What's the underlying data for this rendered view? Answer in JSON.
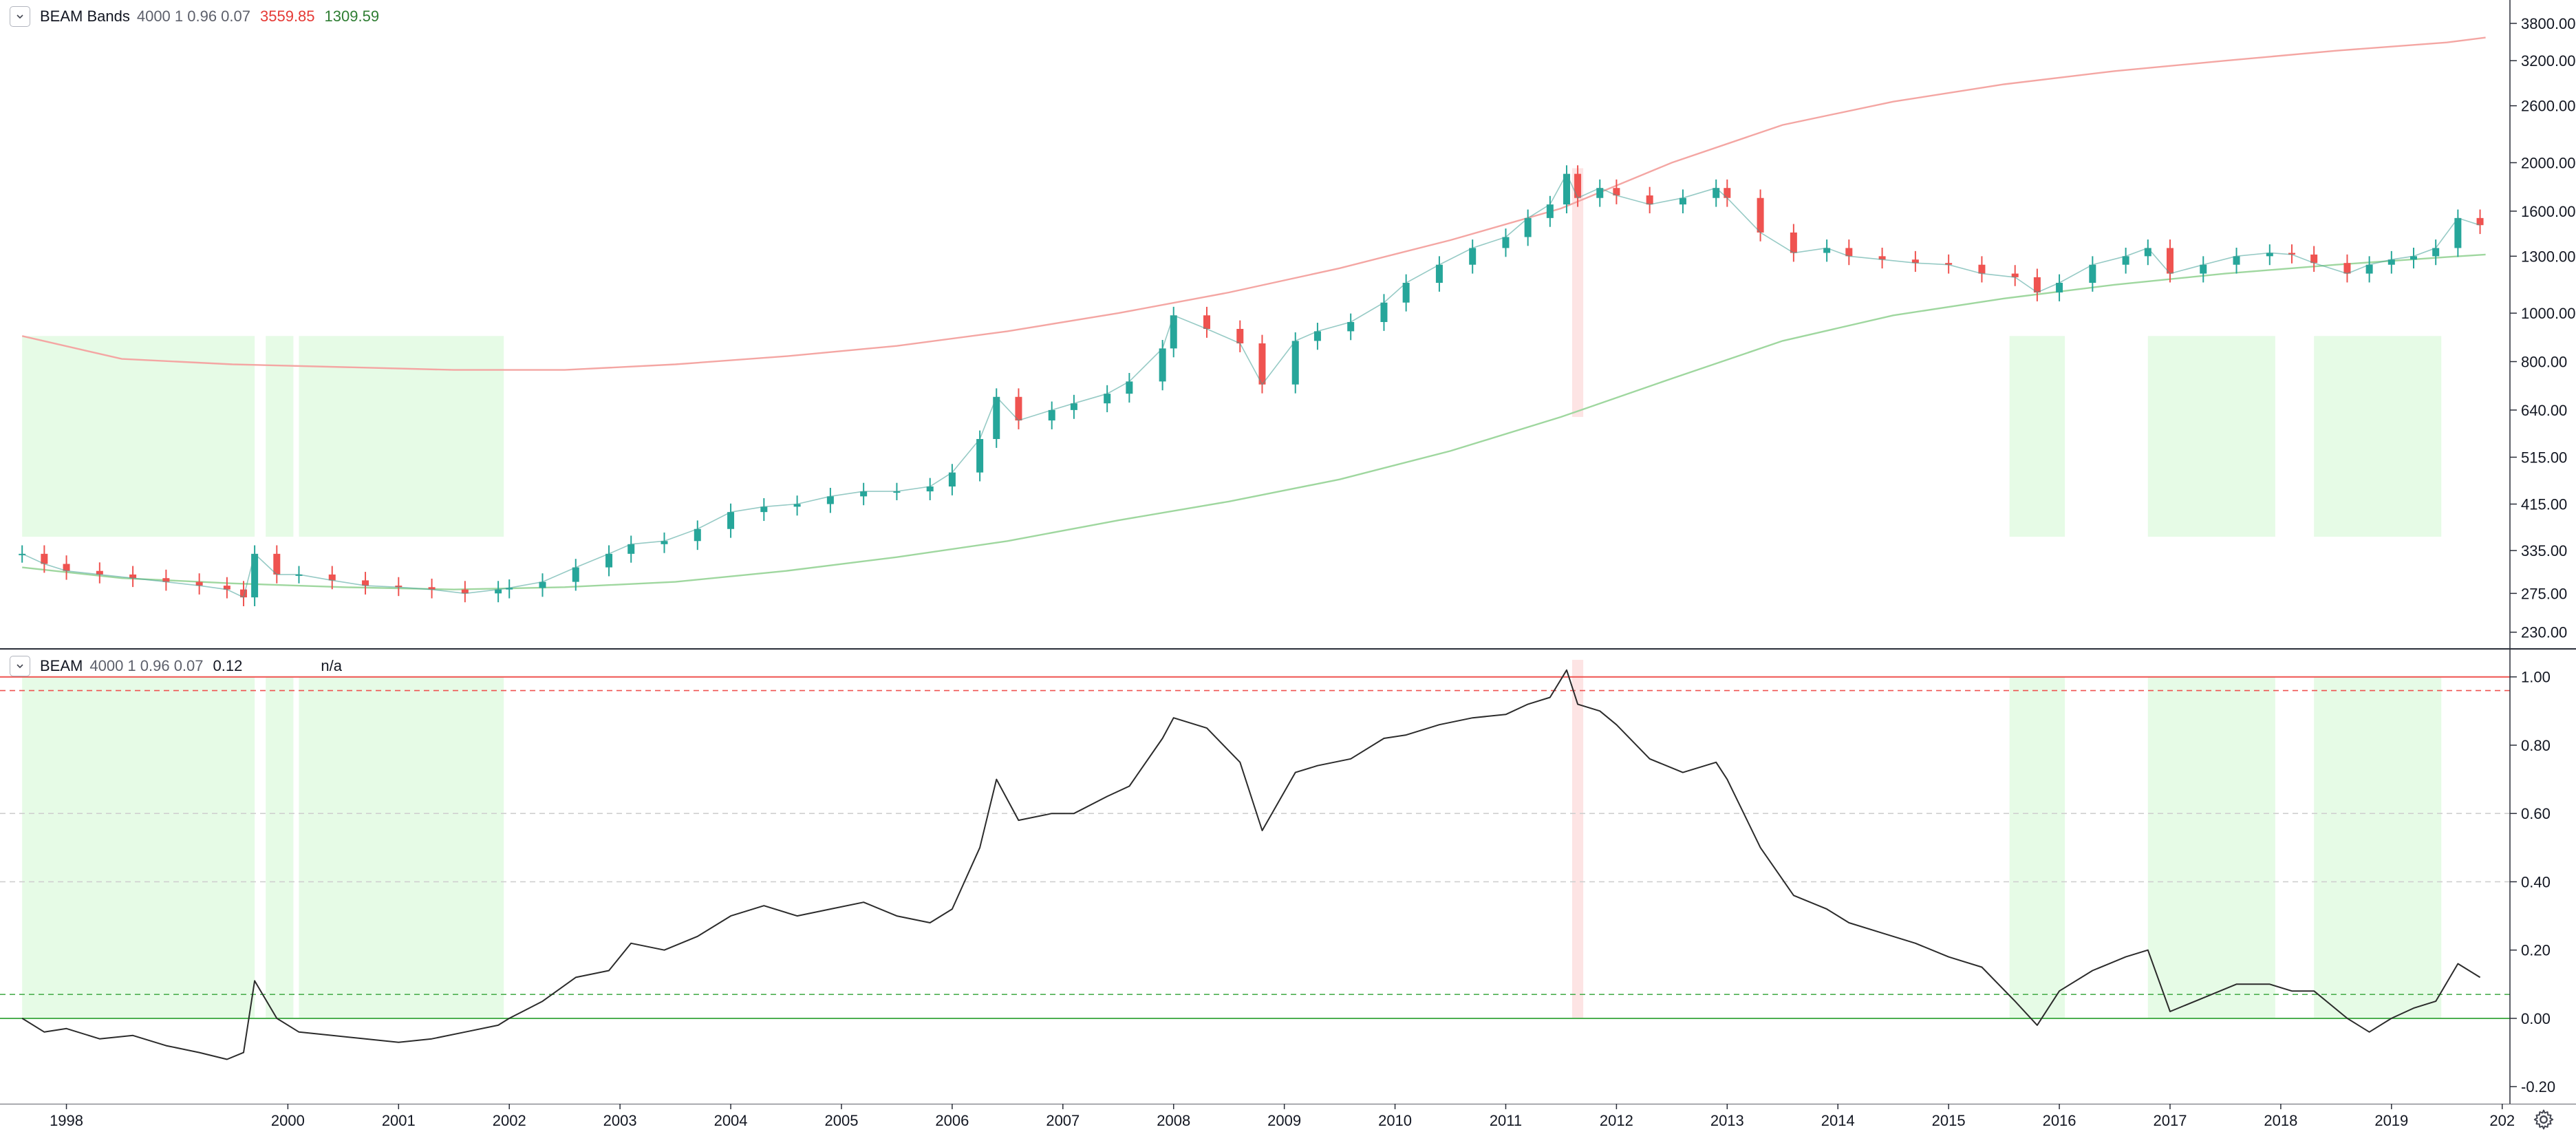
{
  "top_legend": {
    "name": "BEAM Bands",
    "params": "4000 1 0.96 0.07",
    "upper_value": "3559.85",
    "lower_value": "1309.59"
  },
  "bottom_legend": {
    "name": "BEAM",
    "params": "4000 1 0.96 0.07",
    "value": "0.12",
    "value2": "n/a"
  },
  "colors": {
    "candle_up": "#26a69a",
    "candle_down": "#ef5350",
    "upper_band": "#f4a6a3",
    "lower_band": "#9fd79f",
    "buy_zone": "#e6fbe6",
    "sell_zone": "#fde4e4",
    "osc_line": "#2b2b2b",
    "level_line_red": "#ef5350",
    "level_line_green": "#4caf50",
    "grid_dashed": "#cfcfcf"
  },
  "icons": {
    "collapse": "chevron-down-icon",
    "settings": "gear-icon"
  },
  "chart_data": [
    {
      "type": "line",
      "title": "BEAM Bands",
      "subtitle": "4000 1 0.96 0.07",
      "y_scale": "log",
      "ylim": [
        215,
        4100
      ],
      "y_ticks": [
        "3800.00",
        "3200.00",
        "2600.00",
        "2000.00",
        "1600.00",
        "1300.00",
        "1000.00",
        "800.00",
        "640.00",
        "515.00",
        "415.00",
        "335.00",
        "275.00",
        "230.00"
      ],
      "x_ticks": [
        "1998",
        "2000",
        "2001",
        "2002",
        "2003",
        "2004",
        "2005",
        "2006",
        "2007",
        "2008",
        "2009",
        "2010",
        "2011",
        "2012",
        "2013",
        "2014",
        "2015",
        "2016",
        "2017",
        "2018",
        "2019",
        "202"
      ],
      "series": [
        {
          "name": "price",
          "style": "candles",
          "x": [
            1997.6,
            1997.8,
            1998.0,
            1998.3,
            1998.6,
            1998.9,
            1999.2,
            1999.45,
            1999.6,
            1999.7,
            1999.9,
            2000.1,
            2000.4,
            2000.7,
            2001.0,
            2001.3,
            2001.6,
            2001.9,
            2002.0,
            2002.3,
            2002.6,
            2002.9,
            2003.1,
            2003.4,
            2003.7,
            2004.0,
            2004.3,
            2004.6,
            2004.9,
            2005.2,
            2005.5,
            2005.8,
            2006.0,
            2006.25,
            2006.4,
            2006.6,
            2006.9,
            2007.1,
            2007.4,
            2007.6,
            2007.9,
            2008.0,
            2008.3,
            2008.6,
            2008.8,
            2009.1,
            2009.3,
            2009.6,
            2009.9,
            2010.1,
            2010.4,
            2010.7,
            2011.0,
            2011.2,
            2011.4,
            2011.55,
            2011.65,
            2011.85,
            2012.0,
            2012.3,
            2012.6,
            2012.9,
            2013.0,
            2013.3,
            2013.6,
            2013.9,
            2014.1,
            2014.4,
            2014.7,
            2015.0,
            2015.3,
            2015.6,
            2015.8,
            2016.0,
            2016.3,
            2016.6,
            2016.8,
            2017.0,
            2017.3,
            2017.6,
            2017.9,
            2018.1,
            2018.3,
            2018.6,
            2018.8,
            2019.0,
            2019.2,
            2019.4,
            2019.6,
            2019.8
          ],
          "values": [
            330,
            315,
            305,
            300,
            295,
            290,
            285,
            280,
            270,
            330,
            300,
            300,
            292,
            285,
            283,
            280,
            275,
            280,
            282,
            290,
            310,
            330,
            345,
            350,
            370,
            400,
            410,
            415,
            430,
            440,
            440,
            450,
            480,
            560,
            680,
            610,
            640,
            660,
            690,
            730,
            850,
            990,
            930,
            870,
            720,
            880,
            920,
            960,
            1050,
            1150,
            1250,
            1350,
            1420,
            1550,
            1650,
            1900,
            1700,
            1780,
            1720,
            1650,
            1700,
            1780,
            1700,
            1450,
            1320,
            1350,
            1300,
            1280,
            1260,
            1250,
            1200,
            1180,
            1100,
            1150,
            1250,
            1300,
            1350,
            1200,
            1250,
            1300,
            1320,
            1310,
            1260,
            1200,
            1250,
            1280,
            1300,
            1350,
            1550,
            1500
          ]
        },
        {
          "name": "upper band",
          "x": [
            1997.6,
            1998.5,
            1999.5,
            2000.5,
            2001.5,
            2002.5,
            2003.5,
            2004.5,
            2005.5,
            2006.5,
            2007.5,
            2008.5,
            2009.5,
            2010.5,
            2011.5,
            2012.5,
            2013.5,
            2014.5,
            2015.5,
            2016.5,
            2017.5,
            2018.5,
            2019.5,
            2019.85
          ],
          "values": [
            900,
            810,
            790,
            780,
            770,
            770,
            790,
            820,
            860,
            920,
            1000,
            1100,
            1230,
            1400,
            1620,
            2000,
            2380,
            2650,
            2870,
            3050,
            3200,
            3350,
            3480,
            3560
          ]
        },
        {
          "name": "lower band",
          "x": [
            1997.6,
            1998.5,
            1999.5,
            2000.5,
            2001.5,
            2002.5,
            2003.5,
            2004.5,
            2005.5,
            2006.5,
            2007.5,
            2008.5,
            2009.5,
            2010.5,
            2011.5,
            2012.5,
            2013.5,
            2014.5,
            2015.5,
            2016.5,
            2017.5,
            2018.5,
            2019.5,
            2019.85
          ],
          "values": [
            310,
            295,
            288,
            283,
            280,
            283,
            290,
            305,
            325,
            350,
            385,
            420,
            465,
            530,
            620,
            740,
            880,
            990,
            1070,
            1140,
            1200,
            1250,
            1295,
            1310
          ]
        }
      ],
      "zones": {
        "buy": [
          [
            1997.6,
            1999.7
          ],
          [
            1999.8,
            2000.05
          ],
          [
            2000.1,
            2001.95
          ],
          [
            2015.55,
            2016.05
          ],
          [
            2016.8,
            2017.95
          ],
          [
            2018.3,
            2019.45
          ]
        ],
        "sell": [
          [
            2011.6,
            2011.7
          ]
        ]
      }
    },
    {
      "type": "line",
      "title": "BEAM",
      "subtitle": "4000 1 0.96 0.07",
      "ylim": [
        -0.25,
        1.08
      ],
      "y_ticks": [
        "1.00",
        "0.80",
        "0.60",
        "0.40",
        "0.20",
        "0.00",
        "-0.20"
      ],
      "levels": [
        1.0,
        0.96,
        0.6,
        0.4,
        0.07,
        0.0
      ],
      "series": [
        {
          "name": "oscillator",
          "x": [
            1997.6,
            1997.8,
            1998.0,
            1998.3,
            1998.6,
            1998.9,
            1999.2,
            1999.45,
            1999.6,
            1999.7,
            1999.9,
            2000.1,
            2000.4,
            2000.7,
            2001.0,
            2001.3,
            2001.6,
            2001.9,
            2002.0,
            2002.3,
            2002.6,
            2002.9,
            2003.1,
            2003.4,
            2003.7,
            2004.0,
            2004.3,
            2004.6,
            2004.9,
            2005.2,
            2005.5,
            2005.8,
            2006.0,
            2006.25,
            2006.4,
            2006.6,
            2006.9,
            2007.1,
            2007.4,
            2007.6,
            2007.9,
            2008.0,
            2008.3,
            2008.6,
            2008.8,
            2009.1,
            2009.3,
            2009.6,
            2009.9,
            2010.1,
            2010.4,
            2010.7,
            2011.0,
            2011.2,
            2011.4,
            2011.55,
            2011.65,
            2011.85,
            2012.0,
            2012.3,
            2012.6,
            2012.9,
            2013.0,
            2013.3,
            2013.6,
            2013.9,
            2014.1,
            2014.4,
            2014.7,
            2015.0,
            2015.3,
            2015.6,
            2015.8,
            2016.0,
            2016.3,
            2016.6,
            2016.8,
            2017.0,
            2017.3,
            2017.6,
            2017.9,
            2018.1,
            2018.3,
            2018.6,
            2018.8,
            2019.0,
            2019.2,
            2019.4,
            2019.6,
            2019.8
          ],
          "values": [
            0.0,
            -0.04,
            -0.03,
            -0.06,
            -0.05,
            -0.08,
            -0.1,
            -0.12,
            -0.1,
            0.11,
            0.0,
            -0.04,
            -0.05,
            -0.06,
            -0.07,
            -0.06,
            -0.04,
            -0.02,
            0.0,
            0.05,
            0.12,
            0.14,
            0.22,
            0.2,
            0.24,
            0.3,
            0.33,
            0.3,
            0.32,
            0.34,
            0.3,
            0.28,
            0.32,
            0.5,
            0.7,
            0.58,
            0.6,
            0.6,
            0.65,
            0.68,
            0.82,
            0.88,
            0.85,
            0.75,
            0.55,
            0.72,
            0.74,
            0.76,
            0.82,
            0.83,
            0.86,
            0.88,
            0.89,
            0.92,
            0.94,
            1.02,
            0.92,
            0.9,
            0.86,
            0.76,
            0.72,
            0.75,
            0.7,
            0.5,
            0.36,
            0.32,
            0.28,
            0.25,
            0.22,
            0.18,
            0.15,
            0.05,
            -0.02,
            0.08,
            0.14,
            0.18,
            0.2,
            0.02,
            0.06,
            0.1,
            0.1,
            0.08,
            0.08,
            0.0,
            -0.04,
            0.0,
            0.03,
            0.05,
            0.16,
            0.12
          ]
        }
      ]
    }
  ]
}
